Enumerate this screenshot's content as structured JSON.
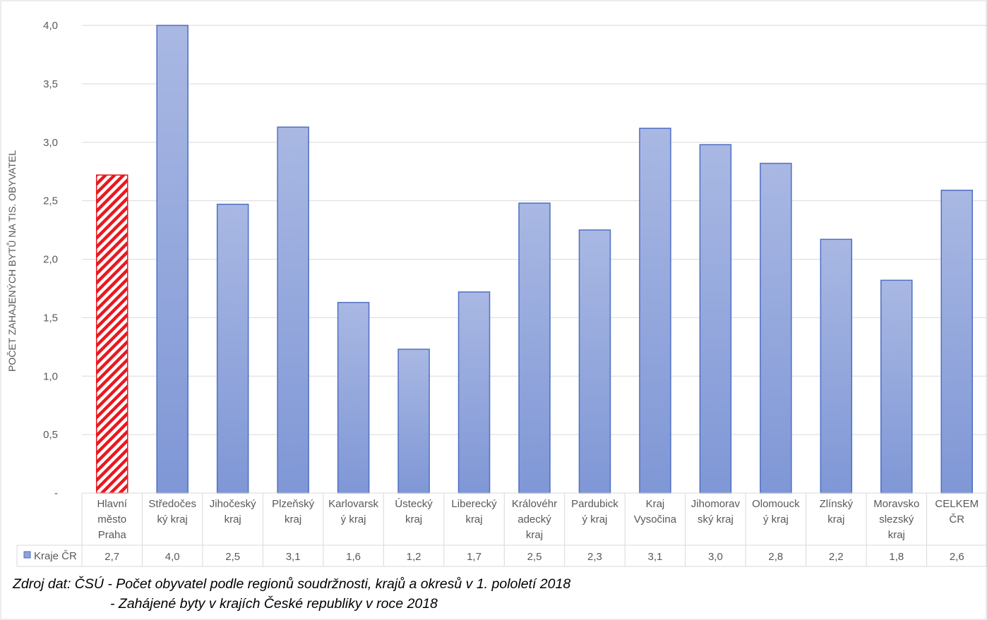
{
  "chart_data": {
    "type": "bar",
    "ylabel": "POČET ZAHAJENÝCH BYTŮ NA TIS. OBYVATEL",
    "ylim": [
      0,
      4.0
    ],
    "yticks": [
      "-",
      "0,5",
      "1,0",
      "1,5",
      "2,0",
      "2,5",
      "3,0",
      "3,5",
      "4,0"
    ],
    "categories": [
      [
        "Hlavní",
        "město",
        "Praha"
      ],
      [
        "Středočes",
        "ký kraj"
      ],
      [
        "Jihočeský",
        "kraj"
      ],
      [
        "Plzeňský",
        "kraj"
      ],
      [
        "Karlovarsk",
        "ý kraj"
      ],
      [
        "Ústecký",
        "kraj"
      ],
      [
        "Liberecký",
        "kraj"
      ],
      [
        "Královéhr",
        "adecký",
        "kraj"
      ],
      [
        "Pardubick",
        "ý kraj"
      ],
      [
        "Kraj",
        "Vysočina"
      ],
      [
        "Jihomorav",
        "ský kraj"
      ],
      [
        "Olomouck",
        "ý kraj"
      ],
      [
        "Zlínský",
        "kraj"
      ],
      [
        "Moravsko",
        "slezský",
        "kraj"
      ],
      [
        "CELKEM",
        "ČR"
      ]
    ],
    "series": [
      {
        "name": "Kraje ČR",
        "values": [
          2.72,
          4.02,
          2.47,
          3.13,
          1.63,
          1.23,
          1.72,
          2.48,
          2.25,
          3.12,
          2.98,
          2.82,
          2.17,
          1.82,
          2.59
        ],
        "labels": [
          "2,7",
          "4,0",
          "2,5",
          "3,1",
          "1,6",
          "1,2",
          "1,7",
          "2,5",
          "2,3",
          "3,1",
          "3,0",
          "2,8",
          "2,2",
          "1,8",
          "2,6"
        ],
        "color": "#8fa2d9",
        "highlight_index": 0,
        "highlight_color": "#e8191f"
      }
    ],
    "grid": true,
    "legend": "data-table"
  },
  "footer": {
    "line1": "Zdroj dat: ČSÚ - Počet obyvatel podle regionů soudržnosti, krajů a okresů v 1. pololetí 2018",
    "line2": "- Zahájené byty v krajích České republiky v roce 2018"
  }
}
